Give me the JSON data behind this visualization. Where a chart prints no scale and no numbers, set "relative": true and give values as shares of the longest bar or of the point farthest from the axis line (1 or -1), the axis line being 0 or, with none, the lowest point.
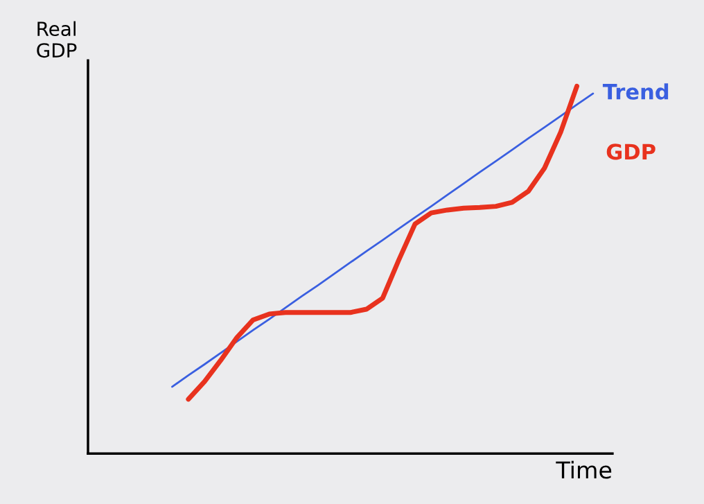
{
  "chart_data": {
    "type": "line",
    "relative": true,
    "xlabel": "Time",
    "ylabel": "Real\nGDP",
    "legend": false,
    "grid": false,
    "categories": [
      null,
      null,
      null,
      null,
      null,
      null,
      null,
      null,
      null,
      null,
      null,
      null,
      null,
      null,
      null,
      null,
      null,
      null,
      null,
      null,
      null,
      null,
      null,
      null,
      null,
      null,
      null,
      null,
      null,
      null,
      null,
      null,
      null
    ],
    "series": [
      {
        "name": "Trend",
        "color": "#3a5fe0",
        "values": [
          null,
          null,
          null,
          null,
          null,
          0.182,
          0.213,
          0.243,
          0.274,
          0.305,
          0.336,
          0.366,
          0.397,
          0.428,
          0.458,
          0.489,
          0.52,
          0.551,
          0.581,
          0.612,
          0.643,
          0.673,
          0.704,
          0.735,
          0.766,
          0.796,
          0.827,
          0.858,
          0.888,
          0.919,
          0.95,
          0.98,
          null
        ]
      },
      {
        "name": "GDP",
        "color": "#e8321e",
        "values": [
          null,
          null,
          null,
          null,
          null,
          null,
          0.148,
          0.196,
          0.254,
          0.316,
          0.364,
          0.38,
          0.384,
          0.384,
          0.384,
          0.384,
          0.384,
          0.393,
          0.423,
          0.527,
          0.625,
          0.655,
          0.663,
          0.668,
          0.67,
          0.673,
          0.684,
          0.714,
          0.777,
          0.875,
          1.0,
          null,
          null
        ]
      }
    ]
  }
}
